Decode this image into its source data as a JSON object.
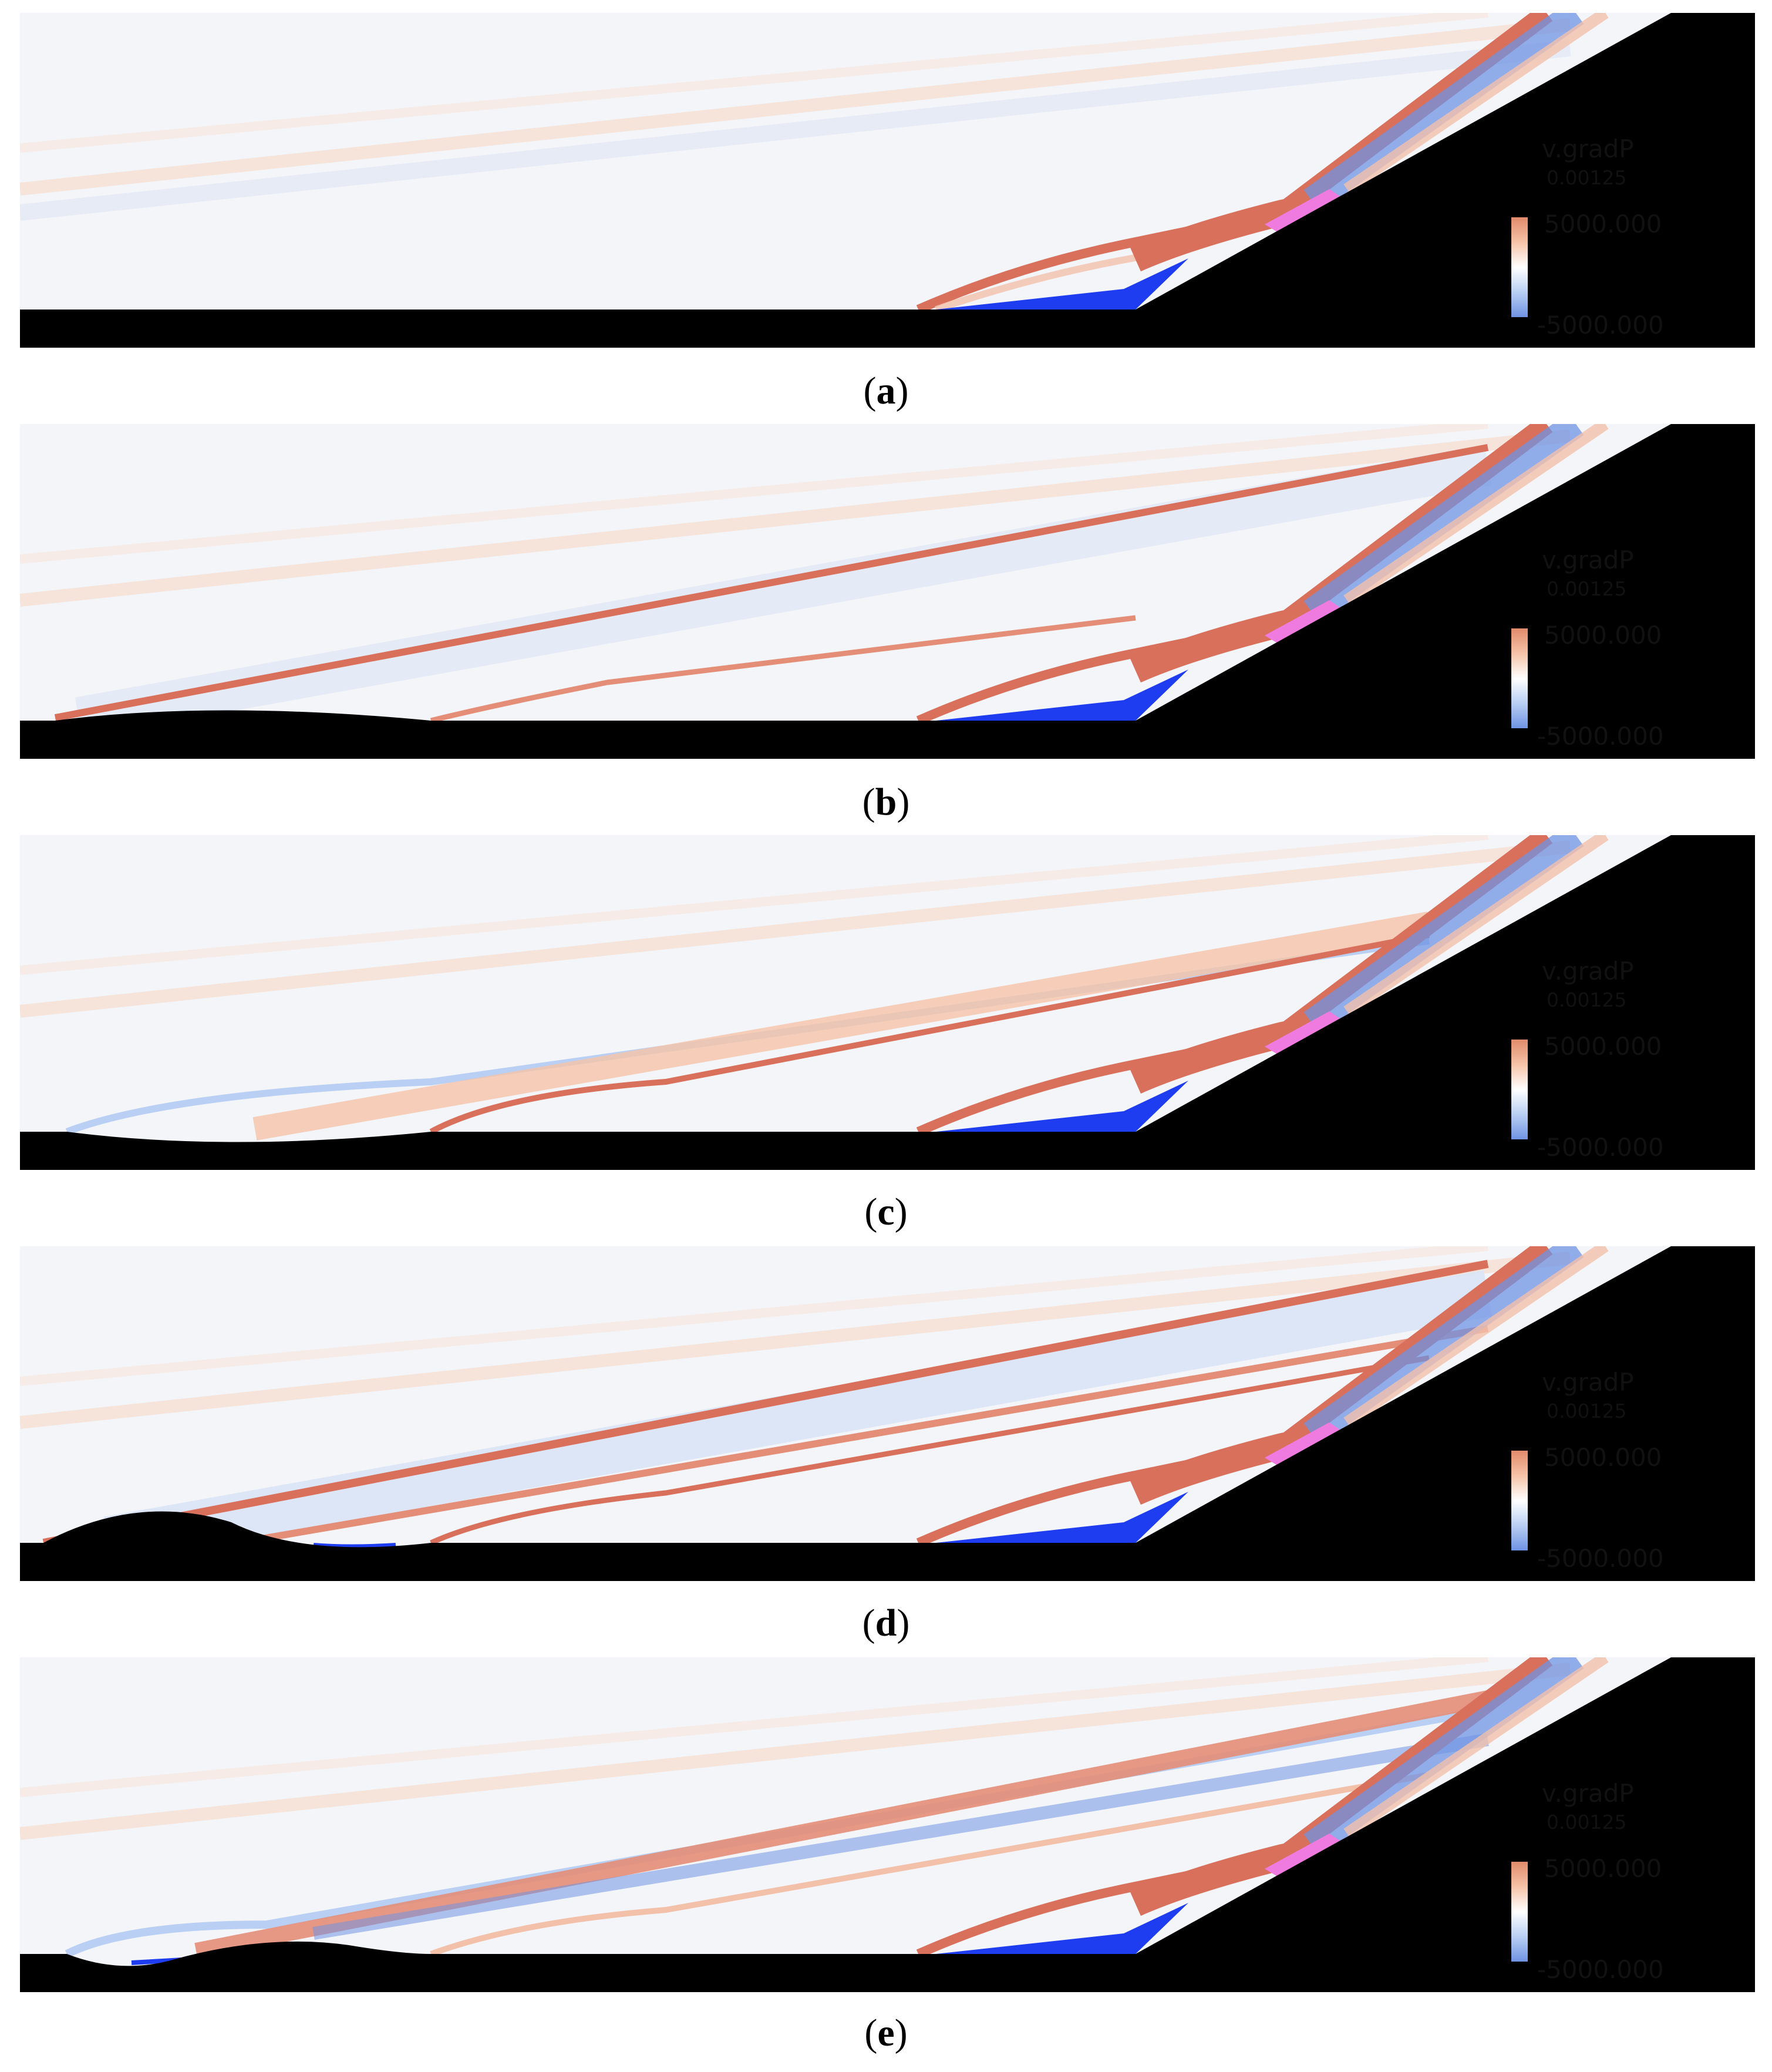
{
  "figure": {
    "panels": [
      {
        "label": "a",
        "legend": {
          "variable": "v.gradP",
          "time": "0.00125",
          "max": "5000.000",
          "min": "-5000.000"
        }
      },
      {
        "label": "b",
        "legend": {
          "variable": "v.gradP",
          "time": "0.00125",
          "max": "5000.000",
          "min": "-5000.000"
        }
      },
      {
        "label": "c",
        "legend": {
          "variable": "v.gradP",
          "time": "0.00125",
          "max": "5000.000",
          "min": "-5000.000"
        }
      },
      {
        "label": "d",
        "legend": {
          "variable": "v.gradP",
          "time": "0.00125",
          "max": "5000.000",
          "min": "-5000.000"
        }
      },
      {
        "label": "e",
        "legend": {
          "variable": "v.gradP",
          "time": "0.00125",
          "max": "5000.000",
          "min": "-5000.000"
        }
      }
    ],
    "colors": {
      "background": "#f3f5f9",
      "positive": "#d9705c",
      "negative": "#3a6fd8",
      "wall": "#000000",
      "separation": "#1f3df0",
      "reattachment": "#f07be0"
    }
  }
}
